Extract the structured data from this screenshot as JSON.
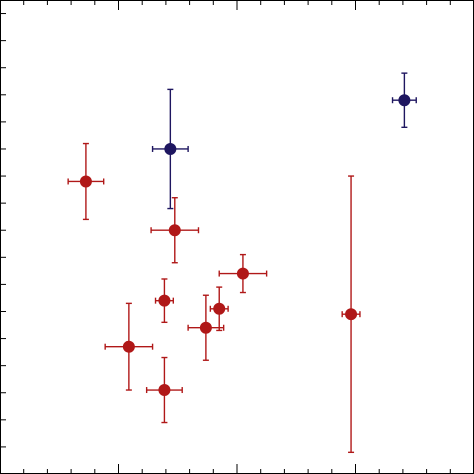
{
  "chart_data": {
    "type": "scatter",
    "title": "",
    "xlabel": "",
    "ylabel": "",
    "xlim": [
      0,
      16
    ],
    "ylim": [
      0,
      17.5
    ],
    "grid": false,
    "legend": "none",
    "tick_labels_shown": false,
    "ticks": {
      "x_major": [
        0,
        4,
        8,
        12,
        16
      ],
      "x_minor_step": 0.8,
      "y_major": [],
      "y_minor_step": 1
    },
    "series": [
      {
        "color": "#b01818",
        "points": [
          {
            "x": 2.9,
            "y": 10.8,
            "xerr": 0.6,
            "yerr": 1.4
          },
          {
            "x": 5.9,
            "y": 9.0,
            "xerr": 0.8,
            "yerr": 1.2
          },
          {
            "x": 8.2,
            "y": 7.4,
            "xerr": 0.8,
            "yerr": 0.7
          },
          {
            "x": 5.55,
            "y": 6.4,
            "xerr": 0.3,
            "yerr": 0.8
          },
          {
            "x": 7.4,
            "y": 6.1,
            "xerr": 0.3,
            "yerr": 0.8
          },
          {
            "x": 6.95,
            "y": 5.4,
            "xerr": 0.6,
            "yerr": 1.2
          },
          {
            "x": 11.85,
            "y": 5.9,
            "xerr": 0.3,
            "yerr": 5.1
          },
          {
            "x": 4.35,
            "y": 4.7,
            "xerr": 0.8,
            "yerr": 1.6
          },
          {
            "x": 5.55,
            "y": 3.1,
            "xerr": 0.6,
            "yerr": 1.2
          }
        ]
      },
      {
        "color": "#1e1660",
        "points": [
          {
            "x": 5.75,
            "y": 12.0,
            "xerr": 0.6,
            "yerr": 2.2
          },
          {
            "x": 13.65,
            "y": 13.8,
            "xerr": 0.4,
            "yerr": 1.0
          }
        ]
      }
    ]
  }
}
